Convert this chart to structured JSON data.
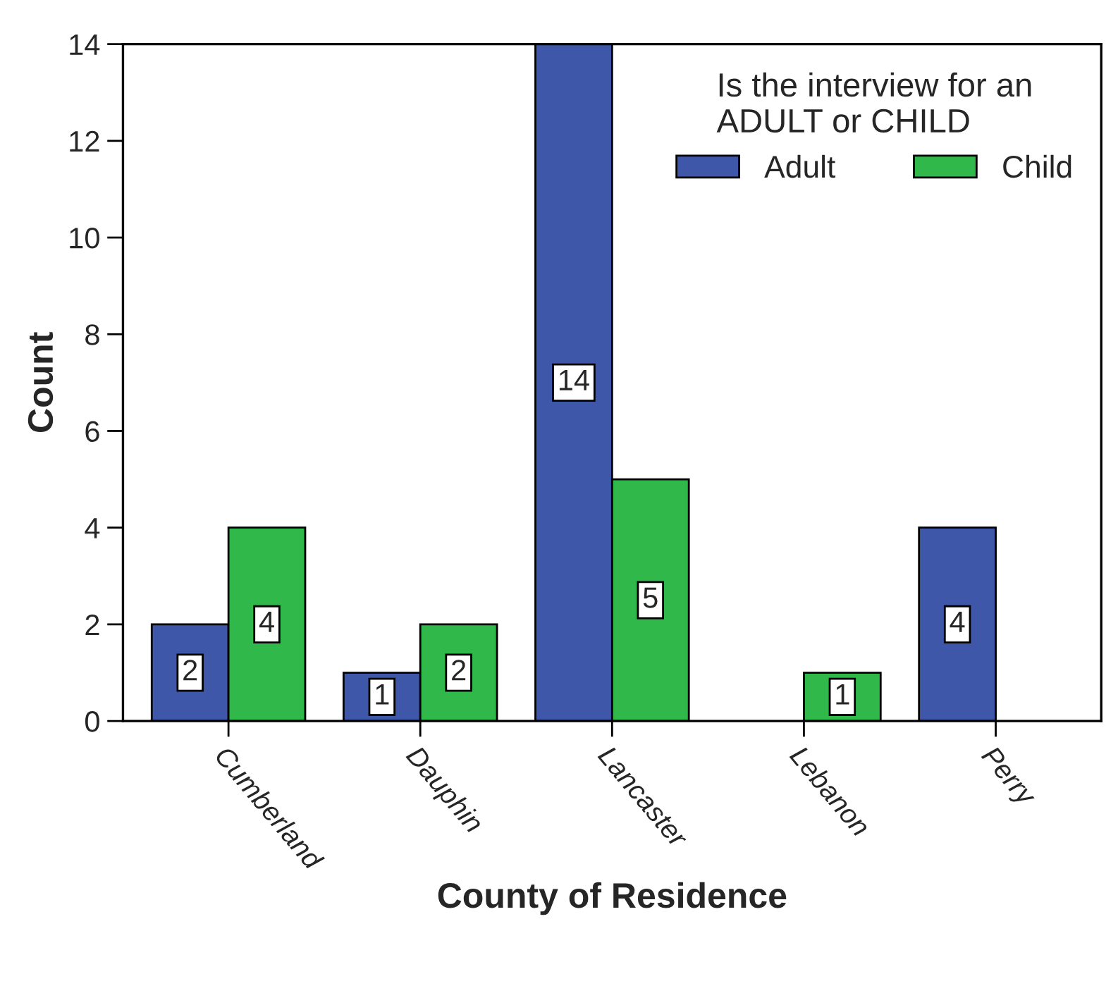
{
  "chart_data": {
    "type": "bar",
    "xlabel": "County of Residence",
    "ylabel": "Count",
    "legend_title": "Is the interview for an\nADULT or CHILD",
    "legend": "top right",
    "grid": false,
    "categories": [
      "Cumberland",
      "Dauphin",
      "Lancaster",
      "Lebanon",
      "Perry"
    ],
    "series": [
      {
        "name": "Adult",
        "color": "#3f57a8",
        "values": [
          2,
          1,
          14,
          null,
          4
        ],
        "value_labels": [
          "2",
          "1",
          "14",
          null,
          "4"
        ]
      },
      {
        "name": "Child",
        "color": "#30b84a",
        "values": [
          4,
          2,
          5,
          1,
          null
        ],
        "value_labels": [
          "4",
          "2",
          "5",
          "1",
          null
        ]
      }
    ],
    "ylim": [
      0,
      14
    ],
    "yticks": [
      0,
      2,
      4,
      6,
      8,
      10,
      12,
      14
    ]
  }
}
